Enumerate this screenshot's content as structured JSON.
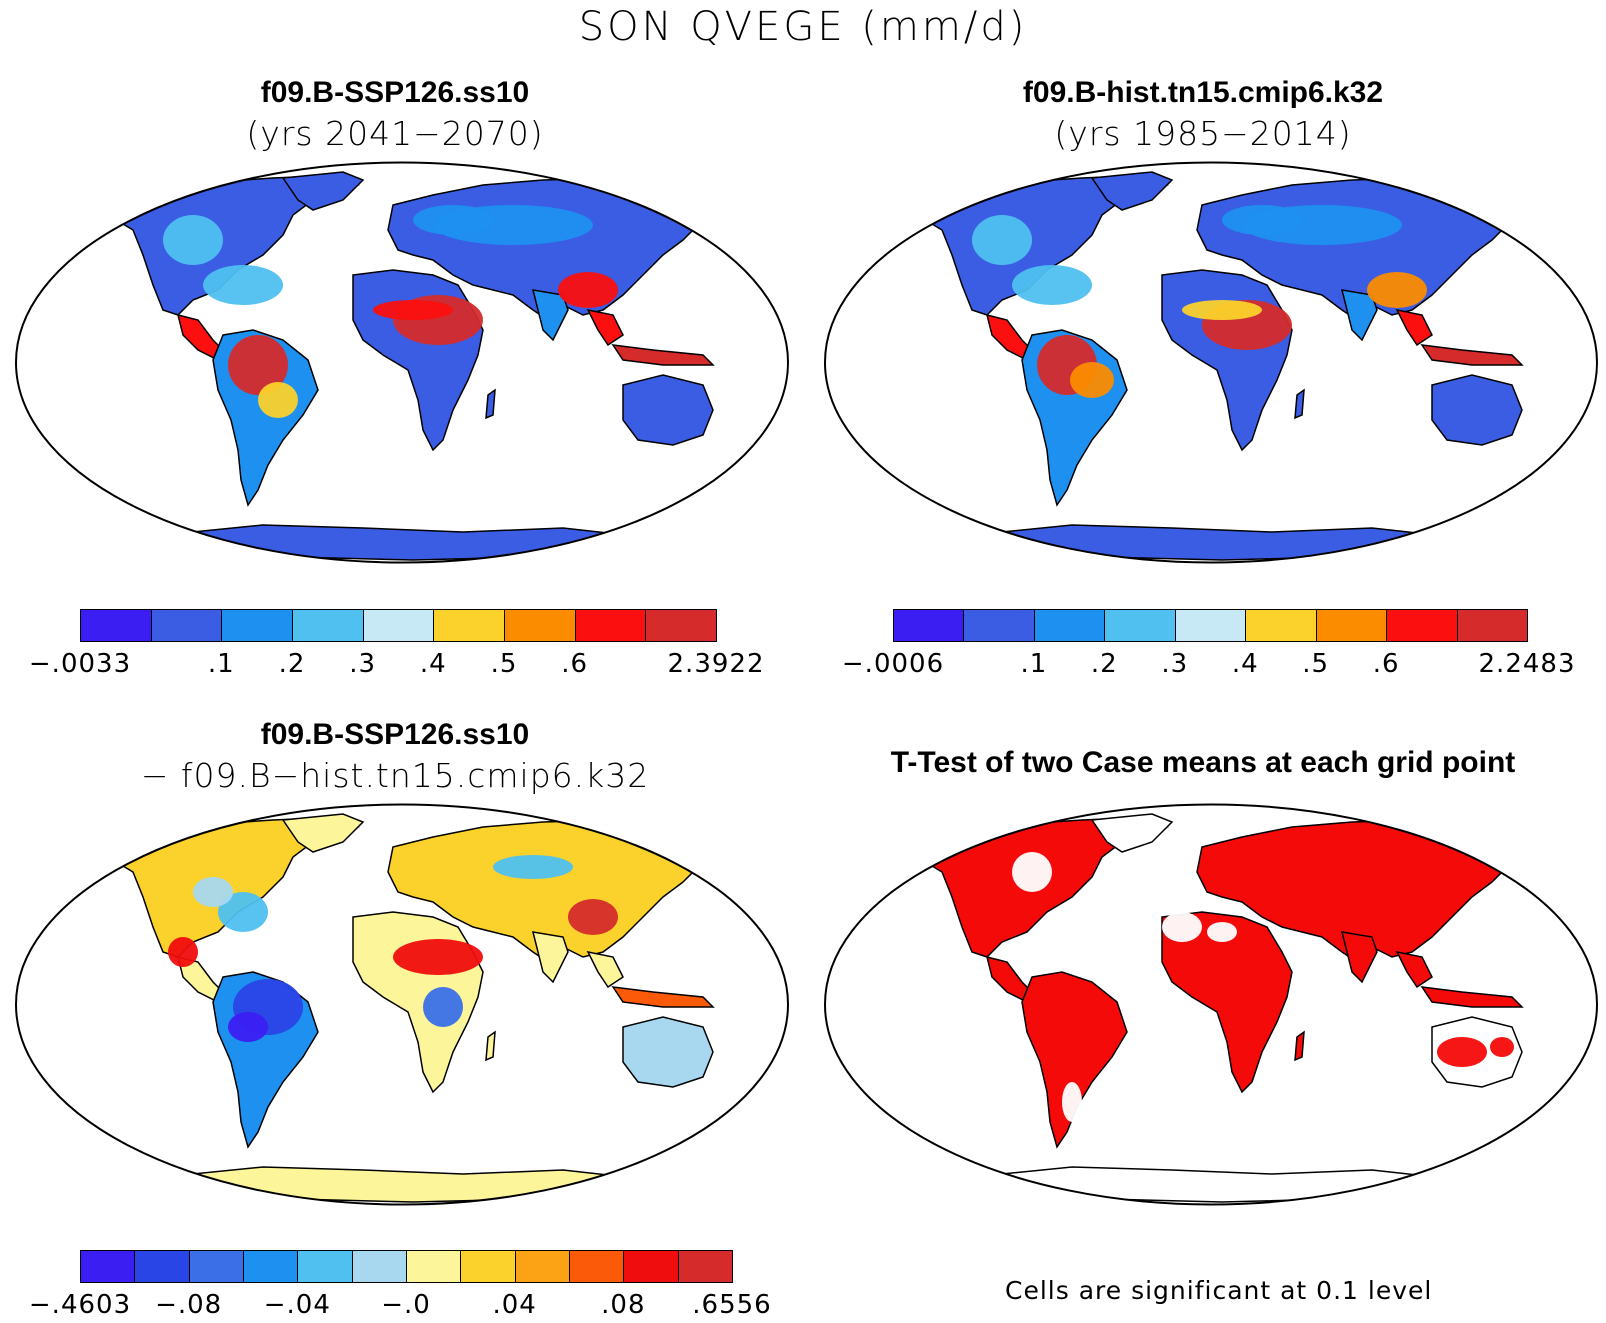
{
  "title": "SON QVEGE (mm/d)",
  "panels": [
    {
      "id": "future",
      "title": "f09.B-SSP126.ss10",
      "subtitle": "(yrs 2041−2070)",
      "colorbar": {
        "colors": [
          "#3b1ff2",
          "#3a5de3",
          "#1e90f0",
          "#4fc0f0",
          "#c7e8f5",
          "#fbd12b",
          "#fb8c00",
          "#fb0f0f",
          "#d52b2b"
        ],
        "labels": [
          "−.0033",
          ".1",
          ".2",
          ".3",
          ".4",
          ".5",
          ".6",
          "2.3922"
        ]
      }
    },
    {
      "id": "historical",
      "title": "f09.B-hist.tn15.cmip6.k32",
      "subtitle": "(yrs 1985−2014)",
      "colorbar": {
        "colors": [
          "#3b1ff2",
          "#3a5de3",
          "#1e90f0",
          "#4fc0f0",
          "#c7e8f5",
          "#fbd12b",
          "#fb8c00",
          "#fb0f0f",
          "#d52b2b"
        ],
        "labels": [
          "−.0006",
          ".1",
          ".2",
          ".3",
          ".4",
          ".5",
          ".6",
          "2.2483"
        ]
      }
    },
    {
      "id": "difference",
      "title": "f09.B-SSP126.ss10",
      "subtitle": "− f09.B−hist.tn15.cmip6.k32",
      "colorbar": {
        "colors": [
          "#3b1ff2",
          "#2a45e6",
          "#3a6fe8",
          "#1e90f0",
          "#4fc0f0",
          "#a8d8ef",
          "#fcf59a",
          "#fbd12b",
          "#fba215",
          "#fb5a08",
          "#f00d0d",
          "#d52b2b"
        ],
        "labels": [
          "−.4603",
          "−.08",
          "−.04",
          "−.0",
          ".04",
          ".08",
          ".6556"
        ]
      }
    },
    {
      "id": "ttest",
      "title": "T-Test of two Case means at each grid point",
      "note": "Cells are significant at 0.1 level"
    }
  ],
  "map_colors": {
    "ocean": "#ffffff",
    "outline": "#000000",
    "significant": "#f50a0a"
  }
}
